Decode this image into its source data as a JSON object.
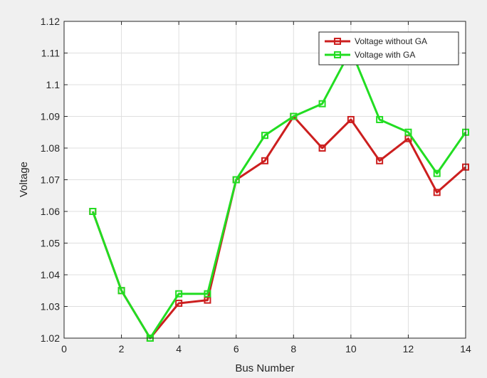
{
  "chart_data": {
    "type": "line",
    "xlabel": "Bus Number",
    "ylabel": "Voltage",
    "xlim": [
      0,
      14
    ],
    "ylim": [
      1.02,
      1.12
    ],
    "xticks": [
      0,
      2,
      4,
      6,
      8,
      10,
      12,
      14
    ],
    "yticks": [
      1.02,
      1.03,
      1.04,
      1.05,
      1.06,
      1.07,
      1.08,
      1.09,
      1.1,
      1.11,
      1.12
    ],
    "xtick_labels": [
      "0",
      "2",
      "4",
      "6",
      "8",
      "10",
      "12",
      "14"
    ],
    "ytick_labels": [
      "1.02",
      "1.03",
      "1.04",
      "1.05",
      "1.06",
      "1.07",
      "1.08",
      "1.09",
      "1.1",
      "1.11",
      "1.12"
    ],
    "grid": true,
    "legend_position": "top-right",
    "series": [
      {
        "name": "Voltage without GA",
        "color": "#cc1f1f",
        "marker": "square",
        "x": [
          1,
          2,
          3,
          4,
          5,
          6,
          7,
          8,
          9,
          10,
          11,
          12,
          13,
          14
        ],
        "y": [
          1.06,
          1.035,
          1.02,
          1.031,
          1.032,
          1.07,
          1.076,
          1.09,
          1.08,
          1.089,
          1.076,
          1.083,
          1.066,
          1.074
        ]
      },
      {
        "name": "Voltage with GA",
        "color": "#22dd22",
        "marker": "square",
        "x": [
          1,
          2,
          3,
          4,
          5,
          6,
          7,
          8,
          9,
          10,
          11,
          12,
          13,
          14
        ],
        "y": [
          1.06,
          1.035,
          1.02,
          1.034,
          1.034,
          1.07,
          1.084,
          1.09,
          1.094,
          1.111,
          1.089,
          1.085,
          1.072,
          1.085
        ]
      }
    ]
  }
}
